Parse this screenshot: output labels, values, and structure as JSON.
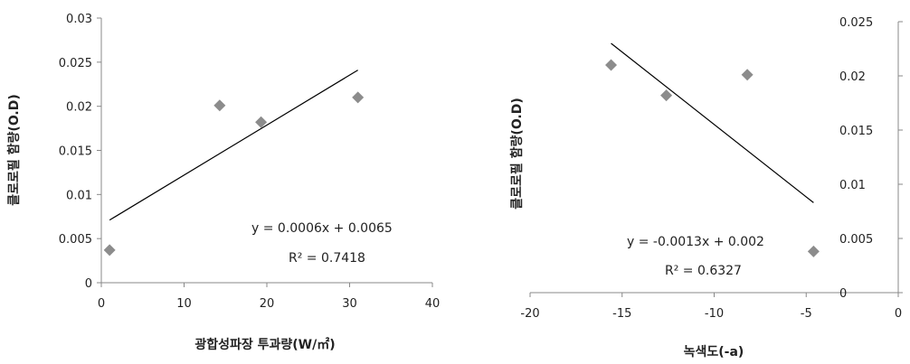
{
  "chart_data": [
    {
      "type": "scatter",
      "xlabel": "광합성파장 투과량(W/㎡)",
      "ylabel": "클로로필 함량(O.D)",
      "xlim": [
        0,
        40
      ],
      "ylim": [
        0,
        0.03
      ],
      "x_ticks": [
        "0",
        "10",
        "20",
        "30",
        "40"
      ],
      "y_ticks": [
        "0",
        "0.005",
        "0.01",
        "0.015",
        "0.02",
        "0.025",
        "0.03"
      ],
      "x_tick_values": [
        0,
        10,
        20,
        30,
        40
      ],
      "y_tick_values": [
        0,
        0.005,
        0.01,
        0.015,
        0.02,
        0.025,
        0.03
      ],
      "y_axis_side": "left",
      "grid": false,
      "points": [
        {
          "x": 1.0,
          "y": 0.0037
        },
        {
          "x": 14.3,
          "y": 0.0201
        },
        {
          "x": 19.3,
          "y": 0.0182
        },
        {
          "x": 31.0,
          "y": 0.021
        }
      ],
      "trendline": {
        "type": "linear",
        "x": [
          1.0,
          31.0
        ],
        "y": [
          0.0071,
          0.0241
        ]
      },
      "equation": "y = 0.0006x  + 0.0065",
      "r_squared": "R² = 0.7418",
      "marker_color": "#8c8c8c",
      "line_color": "#000000"
    },
    {
      "type": "scatter",
      "xlabel": "녹색도(-a)",
      "ylabel": "클로로필 함량(O.D)",
      "xlim": [
        -20,
        0
      ],
      "ylim": [
        0,
        0.025
      ],
      "x_ticks": [
        "-20",
        "-15",
        "-10",
        "-5",
        "0"
      ],
      "y_ticks": [
        "0",
        "0.005",
        "0.01",
        "0.015",
        "0.02",
        "0.025"
      ],
      "x_tick_values": [
        -20,
        -15,
        -10,
        -5,
        0
      ],
      "y_tick_values": [
        0,
        0.005,
        0.01,
        0.015,
        0.02,
        0.025
      ],
      "y_axis_side": "right",
      "grid": false,
      "points": [
        {
          "x": -15.6,
          "y": 0.021
        },
        {
          "x": -12.6,
          "y": 0.0182
        },
        {
          "x": -8.2,
          "y": 0.0201
        },
        {
          "x": -4.6,
          "y": 0.0038
        }
      ],
      "trendline": {
        "type": "linear",
        "x": [
          -15.6,
          -4.6
        ],
        "y": [
          0.023,
          0.0083
        ]
      },
      "equation": "y = -0.0013x  + 0.002",
      "r_squared": "R² = 0.6327",
      "marker_color": "#8c8c8c",
      "line_color": "#000000"
    }
  ]
}
